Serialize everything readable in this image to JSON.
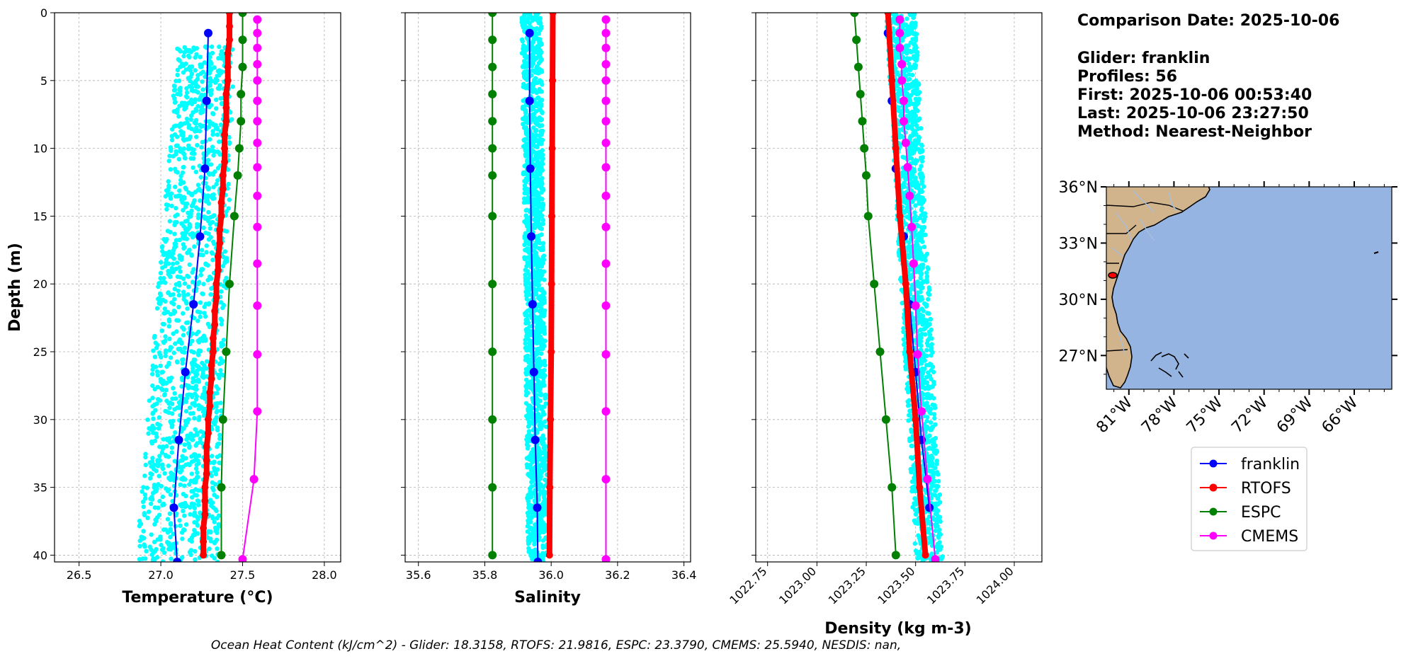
{
  "info": {
    "comparison_date": "Comparison Date: 2025-10-06",
    "glider": "Glider: franklin",
    "profiles": "Profiles: 56",
    "first": "First: 2025-10-06 00:53:40",
    "last": "Last: 2025-10-06 23:27:50",
    "method": "Method: Nearest-Neighbor"
  },
  "footer": "Ocean Heat Content (kJ/cm^2) - Glider: 18.3158,  RTOFS: 21.9816,  ESPC: 23.3790,  CMEMS: 25.5940,  NESDIS: nan,",
  "colors": {
    "franklin": "#0000ff",
    "RTOFS": "#ff0000",
    "ESPC": "#008000",
    "CMEMS": "#ff00ff",
    "obs": "#00ffff",
    "land": "#d2b48c",
    "ocean": "#96b4e1",
    "rivers": "#a5bfdd"
  },
  "chart_data": [
    {
      "type": "line",
      "xlabel": "Temperature (°C)",
      "ylabel": "Depth (m)",
      "xlim": [
        26.35,
        28.1
      ],
      "ylim": [
        40.5,
        0
      ],
      "xticks": [
        26.5,
        27.0,
        27.5,
        28.0
      ],
      "xtick_labels": [
        "26.5",
        "27.0",
        "27.5",
        "28.0"
      ],
      "yticks": [
        0,
        5,
        10,
        15,
        20,
        25,
        30,
        35,
        40
      ],
      "ytick_labels": [
        "0",
        "5",
        "10",
        "15",
        "20",
        "25",
        "30",
        "35",
        "40"
      ],
      "grid": true,
      "obs_scatter": {
        "x_min_top": 27.1,
        "x_min_bottom": 26.85,
        "x_max_top": 27.45,
        "x_max_bottom": 27.35,
        "depth_start": 2.5,
        "depth_end": 40.5
      },
      "series": [
        {
          "name": "franklin",
          "depth": [
            1.5,
            6.5,
            11.5,
            16.5,
            21.5,
            26.5,
            31.5,
            36.5,
            40.5
          ],
          "values": [
            27.29,
            27.28,
            27.27,
            27.24,
            27.2,
            27.15,
            27.11,
            27.08,
            27.1
          ],
          "line_width": 2,
          "marker": 6
        },
        {
          "name": "RTOFS",
          "depth": [
            0,
            1,
            2,
            3,
            4,
            5,
            6,
            7,
            8,
            9,
            10,
            11,
            12,
            13,
            14,
            15,
            16,
            17,
            18,
            19,
            20,
            21,
            22,
            23,
            24,
            25,
            26,
            27,
            28,
            29,
            30,
            31,
            32,
            33,
            34,
            35,
            36,
            37,
            38,
            39,
            40
          ],
          "values": [
            27.42,
            27.42,
            27.42,
            27.41,
            27.41,
            27.41,
            27.4,
            27.4,
            27.4,
            27.39,
            27.39,
            27.39,
            27.38,
            27.38,
            27.37,
            27.37,
            27.36,
            27.36,
            27.35,
            27.35,
            27.34,
            27.34,
            27.33,
            27.33,
            27.32,
            27.32,
            27.31,
            27.31,
            27.3,
            27.3,
            27.29,
            27.29,
            27.28,
            27.28,
            27.28,
            27.27,
            27.27,
            27.27,
            27.26,
            27.26,
            27.26
          ],
          "line_width": 8,
          "marker": 5
        },
        {
          "name": "ESPC",
          "depth": [
            0,
            2,
            4,
            6,
            8,
            10,
            12,
            15,
            20,
            25,
            30,
            35,
            40
          ],
          "values": [
            27.5,
            27.5,
            27.5,
            27.49,
            27.49,
            27.48,
            27.47,
            27.45,
            27.42,
            27.4,
            27.38,
            27.37,
            27.37
          ],
          "line_width": 2,
          "marker": 6
        },
        {
          "name": "CMEMS",
          "depth": [
            0.5,
            1.5,
            2.6,
            3.8,
            5,
            6.5,
            8,
            9.6,
            11.4,
            13.5,
            15.8,
            18.5,
            21.6,
            25.2,
            29.4,
            34.4,
            40.3
          ],
          "values": [
            27.59,
            27.59,
            27.59,
            27.59,
            27.59,
            27.59,
            27.59,
            27.59,
            27.59,
            27.59,
            27.59,
            27.59,
            27.59,
            27.59,
            27.59,
            27.57,
            27.5
          ],
          "line_width": 2,
          "marker": 6
        }
      ]
    },
    {
      "type": "line",
      "xlabel": "Salinity",
      "ylabel": "",
      "xlim": [
        35.56,
        36.42
      ],
      "ylim": [
        40.5,
        0
      ],
      "xticks": [
        35.6,
        35.8,
        36.0,
        36.2,
        36.4
      ],
      "xtick_labels": [
        "35.6",
        "35.8",
        "36.0",
        "36.2",
        "36.4"
      ],
      "yticks": [
        0,
        5,
        10,
        15,
        20,
        25,
        30,
        35,
        40
      ],
      "grid": true,
      "obs_scatter": {
        "x_min_top": 35.91,
        "x_min_bottom": 35.93,
        "x_max_top": 35.97,
        "x_max_bottom": 35.99,
        "depth_start": 0,
        "depth_end": 40.5
      },
      "series": [
        {
          "name": "franklin",
          "depth": [
            1.5,
            6.5,
            11.5,
            16.5,
            21.5,
            26.5,
            31.5,
            36.5,
            40.5
          ],
          "values": [
            35.935,
            35.935,
            35.937,
            35.94,
            35.944,
            35.948,
            35.952,
            35.958,
            35.96
          ],
          "line_width": 2,
          "marker": 6
        },
        {
          "name": "RTOFS",
          "depth": [
            0,
            5,
            10,
            15,
            20,
            25,
            30,
            35,
            40
          ],
          "values": [
            36.005,
            36.004,
            36.003,
            36.002,
            36.001,
            36.0,
            35.998,
            35.996,
            35.995
          ],
          "line_width": 8,
          "marker": 5
        },
        {
          "name": "ESPC",
          "depth": [
            0,
            2,
            4,
            6,
            8,
            10,
            12,
            15,
            20,
            25,
            30,
            35,
            40
          ],
          "values": [
            35.823,
            35.823,
            35.823,
            35.823,
            35.823,
            35.823,
            35.823,
            35.823,
            35.823,
            35.823,
            35.823,
            35.823,
            35.823
          ],
          "line_width": 2,
          "marker": 6
        },
        {
          "name": "CMEMS",
          "depth": [
            0.5,
            1.5,
            2.6,
            3.8,
            5,
            6.5,
            8,
            9.6,
            11.4,
            13.5,
            15.8,
            18.5,
            21.6,
            25.2,
            29.4,
            34.4,
            40.3
          ],
          "values": [
            36.165,
            36.165,
            36.165,
            36.165,
            36.165,
            36.165,
            36.165,
            36.165,
            36.165,
            36.165,
            36.165,
            36.165,
            36.165,
            36.165,
            36.165,
            36.165,
            36.165
          ],
          "line_width": 2,
          "marker": 6
        }
      ]
    },
    {
      "type": "line",
      "xlabel": "Density (kg m-3)",
      "ylabel": "",
      "xlim": [
        1022.69,
        1024.14
      ],
      "ylim": [
        40.5,
        0
      ],
      "xticks": [
        1022.75,
        1023.0,
        1023.25,
        1023.5,
        1023.75,
        1024.0
      ],
      "xtick_labels": [
        "1022.75",
        "1023.00",
        "1023.25",
        "1023.50",
        "1023.75",
        "1024.00"
      ],
      "yticks": [
        0,
        5,
        10,
        15,
        20,
        25,
        30,
        35,
        40
      ],
      "grid": true,
      "obs_scatter": {
        "x_min_top": 1023.35,
        "x_min_bottom": 1023.5,
        "x_max_top": 1023.5,
        "x_max_bottom": 1023.64,
        "depth_start": 0,
        "depth_end": 40.5
      },
      "series": [
        {
          "name": "franklin",
          "depth": [
            1.5,
            6.5,
            11.5,
            16.5,
            21.5,
            26.5,
            31.5,
            36.5
          ],
          "values": [
            1023.36,
            1023.38,
            1023.4,
            1023.44,
            1023.47,
            1023.5,
            1023.53,
            1023.57
          ],
          "line_width": 2,
          "marker": 6
        },
        {
          "name": "RTOFS",
          "depth": [
            0,
            5,
            10,
            15,
            20,
            25,
            30,
            35,
            40
          ],
          "values": [
            1023.36,
            1023.38,
            1023.4,
            1023.42,
            1023.45,
            1023.47,
            1023.5,
            1023.52,
            1023.55
          ],
          "line_width": 8,
          "marker": 5
        },
        {
          "name": "ESPC",
          "depth": [
            0,
            2,
            4,
            6,
            8,
            10,
            12,
            15,
            20,
            25,
            30,
            35,
            40
          ],
          "values": [
            1023.19,
            1023.2,
            1023.21,
            1023.22,
            1023.23,
            1023.24,
            1023.25,
            1023.26,
            1023.29,
            1023.32,
            1023.35,
            1023.38,
            1023.4
          ],
          "line_width": 2,
          "marker": 6
        },
        {
          "name": "CMEMS",
          "depth": [
            0.5,
            1.5,
            2.6,
            3.8,
            5,
            6.5,
            8,
            9.6,
            11.4,
            13.5,
            15.8,
            18.5,
            21.6,
            25.2,
            29.4,
            34.4,
            40.3
          ],
          "values": [
            1023.42,
            1023.42,
            1023.42,
            1023.43,
            1023.43,
            1023.44,
            1023.44,
            1023.45,
            1023.46,
            1023.47,
            1023.48,
            1023.49,
            1023.5,
            1023.51,
            1023.53,
            1023.56,
            1023.6
          ],
          "line_width": 2,
          "marker": 6
        }
      ]
    },
    {
      "type": "map",
      "lon_range": [
        -82.5,
        -63.5
      ],
      "lat_range": [
        25.2,
        36.0
      ],
      "xticks": [
        "81°W",
        "78°W",
        "75°W",
        "72°W",
        "69°W",
        "66°W"
      ],
      "yticks": [
        "36°N",
        "33°N",
        "30°N",
        "27°N"
      ],
      "glider_position": {
        "lon": -81.3,
        "lat": 31.4
      }
    }
  ],
  "legend": [
    "franklin",
    "RTOFS",
    "ESPC",
    "CMEMS"
  ]
}
